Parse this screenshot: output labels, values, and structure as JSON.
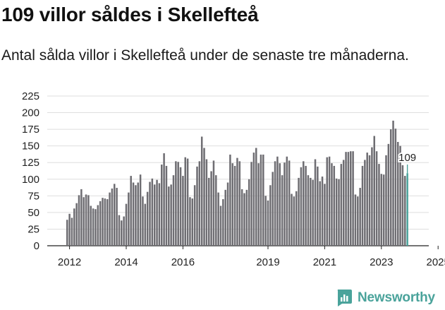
{
  "header": {
    "title": "109 villor såldes i Skellefteå",
    "subtitle": "Antal sålda villor i Skellefteå under de senaste tre månaderna."
  },
  "brand": {
    "name": "Newsworthy",
    "icon": "newsworthy-logo-icon",
    "color": "#4aa39b"
  },
  "colors": {
    "bar": "#6e6d72",
    "highlight": "#4aa39b"
  },
  "chart_data": {
    "type": "bar",
    "title": "109 villor såldes i Skellefteå",
    "xlabel": "",
    "ylabel": "",
    "ylim": [
      0,
      225
    ],
    "yticks": [
      0,
      25,
      50,
      75,
      100,
      125,
      150,
      175,
      200,
      225
    ],
    "grid": true,
    "start_month": "2011-12",
    "xticks": [
      {
        "label": "2012",
        "month": "2012-01"
      },
      {
        "label": "2014",
        "month": "2014-01"
      },
      {
        "label": "2016",
        "month": "2016-01"
      },
      {
        "label": "2019",
        "month": "2019-01"
      },
      {
        "label": "2021",
        "month": "2021-01"
      },
      {
        "label": "2023",
        "month": "2023-01"
      },
      {
        "label": "2025",
        "month": "2025-01"
      }
    ],
    "values": [
      39,
      48,
      42,
      56,
      64,
      76,
      85,
      73,
      77,
      76,
      60,
      56,
      55,
      61,
      67,
      72,
      71,
      70,
      80,
      86,
      93,
      87,
      46,
      38,
      44,
      63,
      80,
      105,
      95,
      91,
      95,
      107,
      74,
      63,
      81,
      96,
      101,
      92,
      99,
      94,
      122,
      139,
      120,
      89,
      92,
      106,
      127,
      126,
      118,
      105,
      133,
      131,
      73,
      71,
      91,
      119,
      127,
      164,
      147,
      130,
      102,
      112,
      128,
      106,
      80,
      60,
      70,
      84,
      95,
      137,
      124,
      120,
      132,
      127,
      85,
      79,
      84,
      100,
      126,
      140,
      147,
      124,
      137,
      137,
      75,
      68,
      91,
      111,
      127,
      134,
      124,
      106,
      125,
      134,
      128,
      78,
      74,
      82,
      102,
      118,
      127,
      120,
      106,
      102,
      99,
      130,
      119,
      97,
      104,
      93,
      133,
      134,
      124,
      120,
      101,
      100,
      123,
      129,
      141,
      141,
      142,
      142,
      77,
      74,
      87,
      120,
      129,
      140,
      136,
      148,
      165,
      142,
      123,
      108,
      107,
      136,
      153,
      175,
      188,
      176,
      156,
      150,
      121,
      105,
      109
    ],
    "last_label": "109"
  }
}
